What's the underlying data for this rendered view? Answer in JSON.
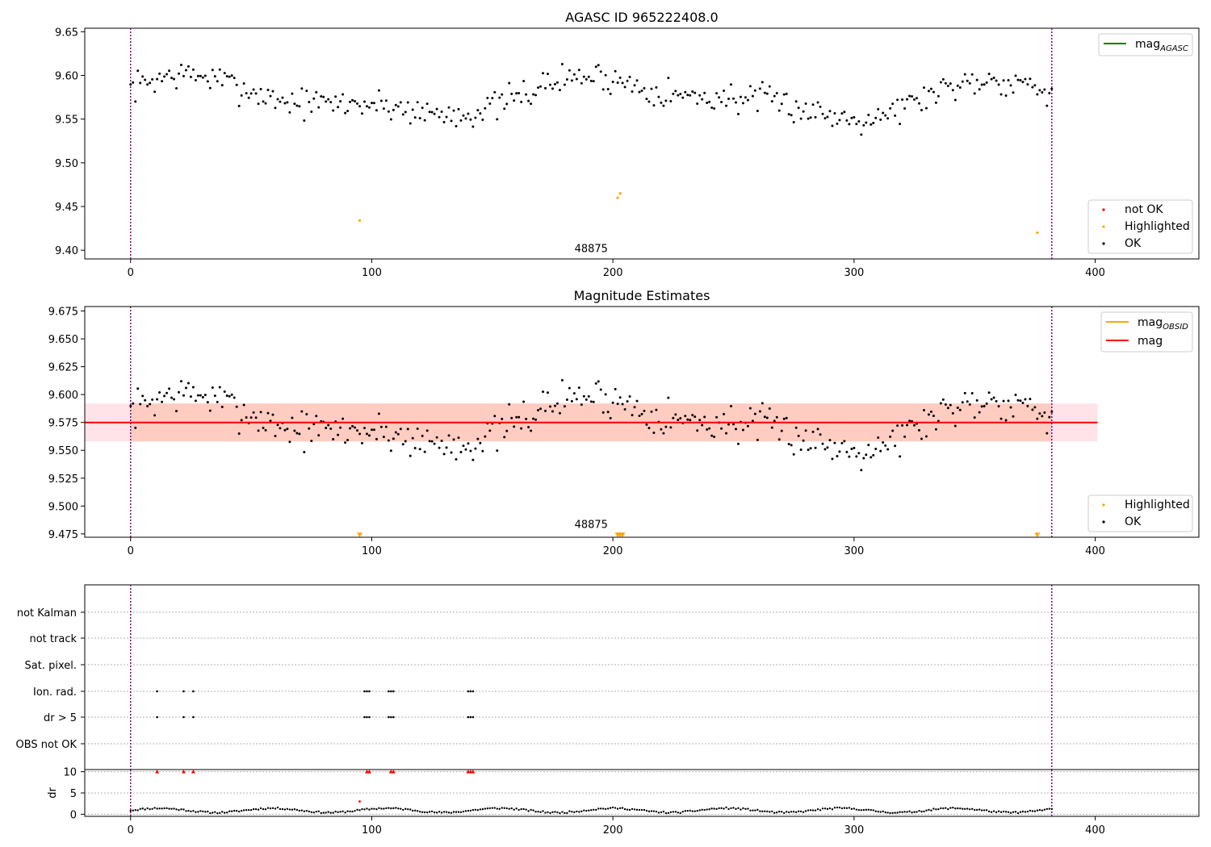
{
  "colors": {
    "ok": "#000000",
    "not_ok": "#ff0000",
    "highlighted": "#ffa500",
    "mag_agasc": "#008000",
    "mag_obsid": "#ffa500",
    "mag": "#ff0000",
    "band_outer": "#ffc0cb",
    "band_inner": "#ffa07a",
    "vline": "#800080",
    "grid": "#b0b0b0",
    "flag_points": "#000000",
    "flag_red": "#ff0000"
  },
  "chart_data": [
    {
      "type": "scatter",
      "title": "AGASC ID 965222408.0",
      "xlim": [
        -19,
        443
      ],
      "ylim": [
        9.39,
        9.654
      ],
      "x_ticks": [
        0,
        100,
        200,
        300,
        400
      ],
      "y_ticks": [
        9.4,
        9.45,
        9.5,
        9.55,
        9.6,
        9.65
      ],
      "y_tick_labels": [
        "9.40",
        "9.45",
        "9.50",
        "9.55",
        "9.60",
        "9.65"
      ],
      "vlines": [
        0,
        382
      ],
      "annotation": {
        "text": "48875",
        "x": 191,
        "y": 9.398
      },
      "series": [
        {
          "name": "OK",
          "x_start": 0,
          "x_end": 382,
          "count": 383,
          "mean": 9.575,
          "spread": 0.017,
          "seed": 7
        },
        {
          "name": "Highlighted",
          "x": [
            95,
            202,
            203,
            376
          ],
          "y": [
            9.434,
            9.46,
            9.465,
            9.42
          ]
        }
      ],
      "legend_lines": [
        {
          "label": "mag",
          "sub": "AGASC",
          "color_key": "mag_agasc",
          "position": "upper right"
        }
      ],
      "legend_points": [
        {
          "label": "not OK",
          "color_key": "not_ok"
        },
        {
          "label": "Highlighted",
          "color_key": "highlighted"
        },
        {
          "label": "OK",
          "color_key": "ok"
        }
      ],
      "legend_points_position": "lower right"
    },
    {
      "type": "scatter",
      "title": "Magnitude Estimates",
      "xlim": [
        -19,
        443
      ],
      "ylim": [
        9.472,
        9.679
      ],
      "x_ticks": [
        0,
        100,
        200,
        300,
        400
      ],
      "y_ticks": [
        9.475,
        9.5,
        9.525,
        9.55,
        9.575,
        9.6,
        9.625,
        9.65,
        9.675
      ],
      "y_tick_labels": [
        "9.475",
        "9.500",
        "9.525",
        "9.550",
        "9.575",
        "9.600",
        "9.625",
        "9.650",
        "9.675"
      ],
      "vlines": [
        0,
        382
      ],
      "annotation": {
        "text": "48875",
        "x": 191,
        "y": 9.479
      },
      "mag_line": {
        "y": 9.575,
        "x_start": -19,
        "x_end": 401
      },
      "band_outer": {
        "y_low": 9.558,
        "y_high": 9.592,
        "x_start": -19,
        "x_end": 401
      },
      "band_inner": {
        "y_low": 9.558,
        "y_high": 9.592,
        "x_start": 0,
        "x_end": 382
      },
      "series": [
        {
          "name": "OK",
          "x_start": 0,
          "x_end": 382,
          "count": 383,
          "mean": 9.575,
          "spread": 0.017,
          "seed": 7
        },
        {
          "name": "Highlighted",
          "x": [
            95,
            202,
            203,
            204,
            376
          ],
          "y": [
            9.474,
            9.474,
            9.474,
            9.474,
            9.474
          ],
          "marker": "triangle-down"
        }
      ],
      "legend_lines": [
        {
          "label": "mag",
          "sub": "OBSID",
          "color_key": "mag_obsid"
        },
        {
          "label": "mag",
          "sub": "",
          "color_key": "mag"
        }
      ],
      "legend_lines_position": "upper right",
      "legend_points": [
        {
          "label": "Highlighted",
          "color_key": "highlighted"
        },
        {
          "label": "OK",
          "color_key": "ok"
        }
      ],
      "legend_points_position": "lower right"
    },
    {
      "type": "scatter",
      "title": "",
      "xlim": [
        -19,
        443
      ],
      "categories": [
        "not Kalman",
        "not track",
        "Sat. pixel.",
        "Ion. rad.",
        "dr > 5",
        "OBS not OK"
      ],
      "vlines": [
        0,
        382
      ],
      "flag_rows": {
        "Ion. rad.": [
          11,
          22,
          26,
          97,
          98,
          99,
          107,
          108,
          109,
          140,
          141,
          142
        ],
        "dr > 5": [
          11,
          22,
          26,
          97,
          98,
          99,
          107,
          108,
          109,
          140,
          141,
          142
        ]
      }
    },
    {
      "type": "scatter",
      "title": "",
      "ylabel": "dr",
      "xlim": [
        -19,
        443
      ],
      "ylim": [
        -0.5,
        10.5
      ],
      "x_ticks": [
        0,
        100,
        200,
        300,
        400
      ],
      "y_ticks": [
        0,
        5,
        10
      ],
      "vlines": [
        0,
        382
      ],
      "markers_at_10": [
        11,
        22,
        26,
        98,
        99,
        108,
        109,
        140,
        141,
        142
      ],
      "outlier": {
        "x": 95,
        "y": 3.0
      },
      "series": [
        {
          "name": "dr",
          "x_start": 0,
          "x_end": 382,
          "count": 383,
          "mean": 0.9,
          "amp": 0.5,
          "seed": 11
        }
      ]
    }
  ]
}
